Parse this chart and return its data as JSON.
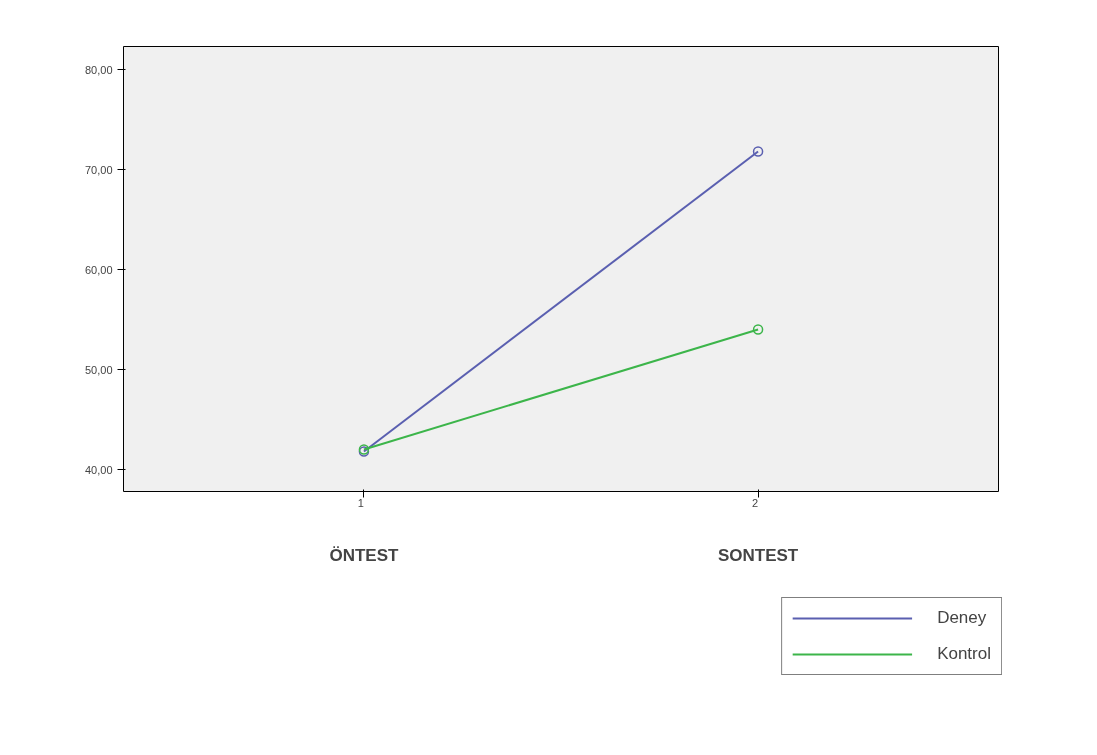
{
  "chart_data": {
    "type": "line",
    "x": [
      1,
      2
    ],
    "series": [
      {
        "name": "Deney",
        "color": "#5a5fb0",
        "values": [
          41.8,
          71.8
        ]
      },
      {
        "name": "Kontrol",
        "color": "#3cb54a",
        "values": [
          42.0,
          54.0
        ]
      }
    ],
    "xlim": [
      0.39,
      2.61
    ],
    "xticks": [
      1,
      2
    ],
    "ylim": [
      37.8,
      82.3
    ],
    "yticks": [
      {
        "value": 40,
        "label": "40,00"
      },
      {
        "value": 50,
        "label": "50,00"
      },
      {
        "value": 60,
        "label": "60,00"
      },
      {
        "value": 70,
        "label": "70,00"
      },
      {
        "value": 80,
        "label": "80,00"
      }
    ],
    "annotations": [
      "ÖNTEST",
      "SONTEST"
    ],
    "marker": "circle",
    "line_style": "solid",
    "grid": false,
    "legend": "bottom right"
  }
}
